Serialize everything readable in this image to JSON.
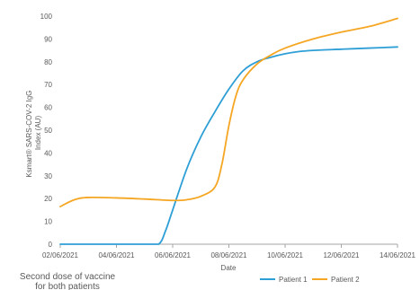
{
  "chart_data": {
    "type": "line",
    "xlabel": "Date",
    "ylabel_line1": "Ksmart® SARS-COV-2 IgG",
    "ylabel_line2": "Index (AU)",
    "ylim": [
      0,
      100
    ],
    "y_ticks": [
      0,
      10,
      20,
      30,
      40,
      50,
      60,
      70,
      80,
      90,
      100
    ],
    "x_range": [
      "02/06/2021",
      "14/06/2021"
    ],
    "x_tick_labels": [
      "02/06/2021",
      "04/06/2021",
      "06/06/2021",
      "08/06/2021",
      "10/06/2021",
      "12/06/2021",
      "14/06/2021"
    ],
    "grid": false,
    "legend_position": "bottom-right",
    "annotation_line1": "Second dose of vaccine",
    "annotation_line2": "for both patients",
    "colors": {
      "axis": "#a6a6a6",
      "text": "#595959"
    },
    "series": [
      {
        "name": "Patient 1",
        "color": "#2e9fd6",
        "points": [
          [
            "02/06/2021",
            0
          ],
          [
            "03/06/2021",
            0
          ],
          [
            "04/06/2021",
            0
          ],
          [
            "05/06/2021",
            0
          ],
          [
            "05/06/2021 12:00",
            0
          ],
          [
            "05/06/2021 18:00",
            6
          ],
          [
            "06/06/2021",
            15
          ],
          [
            "06/06/2021 12:00",
            33
          ],
          [
            "07/06/2021",
            47
          ],
          [
            "07/06/2021 12:00",
            58
          ],
          [
            "08/06/2021",
            68
          ],
          [
            "08/06/2021 12:00",
            76
          ],
          [
            "09/06/2021",
            80
          ],
          [
            "09/06/2021 12:00",
            82
          ],
          [
            "10/06/2021",
            83.5
          ],
          [
            "10/06/2021 12:00",
            84.5
          ],
          [
            "11/06/2021",
            85
          ],
          [
            "12/06/2021",
            85.5
          ],
          [
            "13/06/2021",
            86
          ],
          [
            "14/06/2021",
            86.5
          ]
        ]
      },
      {
        "name": "Patient 2",
        "color": "#f5a623",
        "points": [
          [
            "02/06/2021",
            16.5
          ],
          [
            "02/06/2021 12:00",
            19.5
          ],
          [
            "03/06/2021",
            20.5
          ],
          [
            "04/06/2021",
            20.3
          ],
          [
            "05/06/2021",
            19.8
          ],
          [
            "06/06/2021",
            19.2
          ],
          [
            "06/06/2021 12:00",
            19.5
          ],
          [
            "07/06/2021",
            21
          ],
          [
            "07/06/2021 12:00",
            25
          ],
          [
            "07/06/2021 18:00",
            35
          ],
          [
            "08/06/2021",
            52
          ],
          [
            "08/06/2021 06:00",
            65
          ],
          [
            "08/06/2021 12:00",
            72
          ],
          [
            "09/06/2021",
            79
          ],
          [
            "09/06/2021 12:00",
            83
          ],
          [
            "10/06/2021",
            86
          ],
          [
            "11/06/2021",
            90
          ],
          [
            "12/06/2021",
            93
          ],
          [
            "13/06/2021",
            95.5
          ],
          [
            "14/06/2021",
            99
          ]
        ]
      }
    ]
  }
}
